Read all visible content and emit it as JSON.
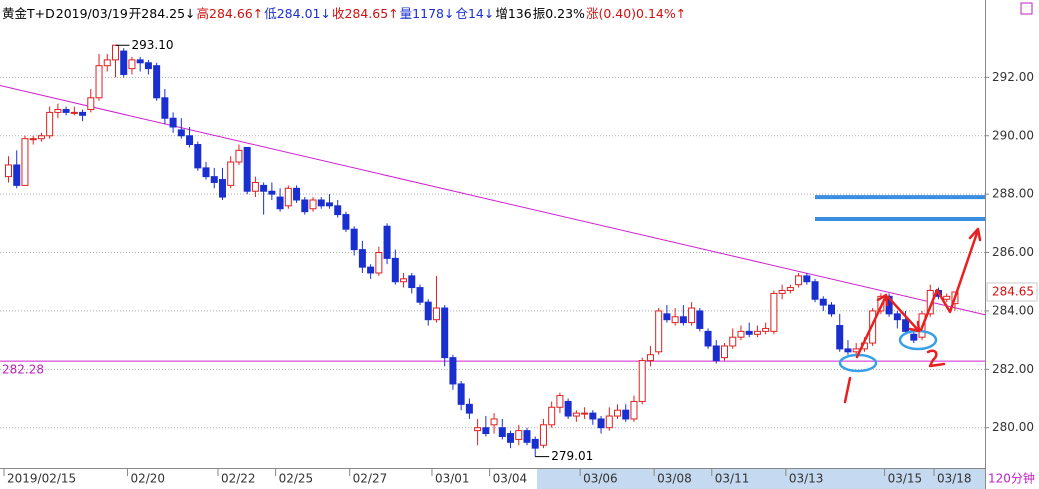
{
  "chart_data": {
    "type": "candlestick",
    "header": [
      "黄金T+D",
      "2019/03/19",
      "开284.25↓",
      "高284.66↑",
      "低284.01↓",
      "收284.65↑",
      "量1178↓",
      "仓14↓",
      "增136",
      "振0.23%",
      "涨(0.40)0.14%↑"
    ],
    "unit_label": "120分钟",
    "categories": [
      "2019/02/15",
      null,
      null,
      null,
      null,
      null,
      null,
      null,
      null,
      null,
      null,
      null,
      null,
      null,
      null,
      "02/20",
      null,
      null,
      null,
      null,
      null,
      null,
      null,
      null,
      null,
      null,
      "02/22",
      null,
      null,
      null,
      null,
      null,
      null,
      "02/25",
      null,
      null,
      null,
      null,
      null,
      null,
      null,
      null,
      "02/27",
      null,
      null,
      null,
      null,
      null,
      null,
      null,
      null,
      null,
      "03/01",
      null,
      null,
      null,
      null,
      null,
      null,
      "03/04",
      null,
      null,
      null,
      null,
      null,
      null,
      null,
      null,
      null,
      null,
      "03/06",
      null,
      null,
      null,
      null,
      null,
      null,
      null,
      null,
      "03/08",
      null,
      null,
      null,
      null,
      null,
      null,
      "03/11",
      null,
      null,
      null,
      null,
      null,
      null,
      null,
      null,
      "03/13",
      null,
      null,
      null,
      null,
      null,
      null,
      null,
      null,
      null,
      null,
      null,
      "03/15",
      null,
      null,
      null,
      null,
      null,
      "03/18",
      null,
      null
    ],
    "open": [
      288.6,
      289.0,
      288.3,
      289.9,
      289.9,
      290.0,
      290.8,
      290.9,
      290.8,
      290.8,
      290.9,
      291.3,
      292.4,
      292.6,
      292.9,
      292.3,
      292.6,
      292.5,
      292.4,
      291.3,
      290.6,
      290.2,
      290.0,
      289.7,
      288.9,
      288.6,
      288.5,
      288.3,
      289.1,
      289.6,
      288.1,
      288.3,
      288.1,
      287.9,
      287.6,
      288.2,
      287.8,
      287.5,
      287.8,
      287.7,
      287.6,
      287.3,
      286.8,
      286.1,
      285.5,
      285.3,
      286.9,
      285.8,
      285.0,
      285.2,
      284.8,
      284.3,
      283.7,
      284.1,
      282.4,
      281.5,
      280.8,
      279.9,
      280.0,
      280.1,
      280.0,
      279.8,
      279.6,
      279.9,
      279.6,
      279.4,
      280.1,
      280.7,
      280.9,
      280.4,
      280.5,
      280.5,
      280.3,
      280.0,
      280.4,
      280.6,
      280.3,
      280.9,
      282.3,
      282.6,
      283.9,
      283.6,
      283.8,
      283.6,
      284.0,
      283.3,
      282.8,
      282.4,
      282.8,
      283.1,
      283.3,
      283.2,
      283.3,
      283.3,
      284.6,
      284.7,
      284.9,
      285.2,
      285.0,
      284.4,
      284.2,
      283.5,
      282.7,
      282.6,
      282.7,
      282.9,
      284.0,
      284.5,
      283.9,
      283.7,
      283.2,
      283.1,
      283.9,
      284.7,
      284.4,
      284.25
    ],
    "high": [
      289.3,
      289.5,
      290.0,
      290.0,
      290.1,
      291.0,
      291.1,
      291.0,
      291.0,
      290.9,
      291.6,
      292.8,
      292.8,
      293.1,
      293.0,
      292.7,
      292.7,
      292.6,
      292.5,
      291.6,
      290.8,
      290.6,
      290.3,
      289.8,
      289.1,
      288.9,
      288.9,
      289.3,
      289.7,
      289.6,
      288.6,
      288.4,
      288.4,
      288.2,
      288.3,
      288.3,
      287.9,
      287.9,
      287.9,
      288.0,
      287.8,
      287.4,
      286.9,
      286.4,
      285.6,
      286.2,
      287.0,
      286.1,
      285.3,
      285.3,
      284.9,
      284.4,
      285.2,
      284.2,
      282.5,
      281.6,
      281.0,
      280.3,
      280.4,
      280.5,
      280.3,
      279.9,
      280.1,
      280.0,
      279.7,
      280.3,
      280.9,
      281.2,
      281.0,
      280.6,
      280.7,
      280.6,
      280.4,
      280.7,
      280.8,
      280.8,
      281.1,
      282.4,
      282.8,
      284.1,
      284.2,
      284.1,
      284.2,
      284.3,
      284.1,
      283.4,
      283.0,
      282.9,
      283.4,
      283.5,
      283.6,
      283.5,
      283.6,
      284.7,
      284.9,
      284.9,
      285.3,
      285.3,
      285.1,
      284.5,
      284.3,
      283.9,
      283.0,
      282.9,
      283.1,
      284.1,
      284.6,
      284.6,
      284.0,
      284.0,
      283.4,
      284.0,
      284.9,
      284.8,
      284.6,
      284.66
    ],
    "low": [
      288.4,
      288.2,
      288.3,
      289.7,
      289.8,
      289.9,
      290.6,
      290.7,
      290.7,
      290.5,
      290.8,
      291.2,
      292.2,
      292.0,
      292.0,
      292.1,
      292.2,
      292.1,
      291.2,
      290.4,
      290.1,
      289.9,
      289.6,
      288.8,
      288.5,
      288.2,
      287.8,
      288.2,
      289.0,
      288.0,
      287.9,
      287.3,
      287.8,
      287.4,
      287.5,
      287.7,
      287.3,
      287.4,
      287.5,
      287.5,
      287.2,
      286.7,
      285.9,
      285.3,
      285.1,
      285.2,
      285.6,
      284.9,
      284.8,
      284.6,
      284.2,
      283.5,
      283.6,
      282.1,
      281.3,
      280.6,
      280.3,
      279.4,
      279.7,
      279.8,
      279.6,
      279.3,
      279.4,
      279.4,
      279.01,
      279.3,
      280.0,
      280.5,
      280.3,
      280.2,
      280.3,
      280.1,
      279.8,
      279.9,
      280.3,
      280.2,
      280.2,
      280.8,
      282.1,
      282.5,
      283.6,
      283.5,
      283.5,
      283.5,
      283.3,
      282.7,
      282.2,
      282.3,
      282.7,
      283.0,
      283.1,
      283.1,
      283.2,
      283.2,
      284.4,
      284.6,
      284.8,
      284.9,
      284.3,
      284.0,
      283.8,
      282.6,
      282.5,
      282.5,
      282.6,
      282.8,
      283.9,
      283.8,
      283.4,
      283.2,
      282.9,
      283.0,
      283.8,
      284.4,
      284.3,
      284.01
    ],
    "close": [
      289.0,
      288.3,
      289.9,
      289.9,
      290.0,
      290.8,
      290.9,
      290.8,
      290.8,
      290.7,
      291.3,
      292.4,
      292.6,
      293.1,
      292.1,
      292.6,
      292.5,
      292.3,
      291.3,
      290.6,
      290.3,
      290.0,
      289.7,
      288.9,
      288.6,
      288.4,
      287.9,
      289.1,
      289.5,
      288.1,
      288.4,
      288.1,
      288.0,
      287.5,
      288.2,
      287.8,
      287.4,
      287.8,
      287.6,
      287.6,
      287.3,
      286.8,
      286.1,
      285.5,
      285.3,
      286.0,
      285.8,
      285.0,
      285.1,
      284.8,
      284.3,
      283.7,
      284.1,
      282.4,
      281.5,
      280.8,
      280.5,
      280.0,
      279.8,
      280.3,
      279.7,
      279.5,
      279.9,
      279.5,
      279.3,
      280.1,
      280.7,
      281.1,
      280.4,
      280.5,
      280.5,
      280.3,
      280.0,
      280.4,
      280.6,
      280.3,
      280.9,
      282.3,
      282.5,
      284.0,
      283.7,
      283.8,
      283.6,
      284.1,
      283.4,
      282.8,
      282.3,
      282.8,
      283.1,
      283.3,
      283.2,
      283.3,
      283.4,
      284.6,
      284.7,
      284.8,
      285.2,
      285.0,
      284.4,
      284.2,
      283.9,
      282.7,
      282.6,
      282.7,
      282.9,
      284.0,
      284.5,
      283.9,
      283.7,
      283.3,
      283.0,
      283.9,
      284.7,
      284.5,
      284.5,
      284.65
    ],
    "up_color": "#e02020",
    "down_color": "#1a2fd0",
    "ylim": [
      278.62,
      294.65
    ],
    "yticks": [
      {
        "value": 280,
        "label": "280.00"
      },
      {
        "value": 282,
        "label": "282.00"
      },
      {
        "value": 284,
        "label": "284.00"
      },
      {
        "value": 286,
        "label": "286.00"
      },
      {
        "value": 288,
        "label": "288.00"
      },
      {
        "value": 290,
        "label": "290.00"
      },
      {
        "value": 292,
        "label": "292.00"
      }
    ],
    "grid": true,
    "extremes": [
      {
        "index": 13,
        "value": 293.1,
        "label": "293.10"
      },
      {
        "index": 64,
        "value": 279.01,
        "label": "279.01"
      }
    ],
    "trendline": [
      291.72,
      283.87
    ],
    "level_line": {
      "value": 282.28,
      "label": "282.28"
    },
    "last_price": {
      "value": 284.65,
      "label": "284.65"
    },
    "resistance_levels": [
      287.9,
      287.15
    ]
  }
}
